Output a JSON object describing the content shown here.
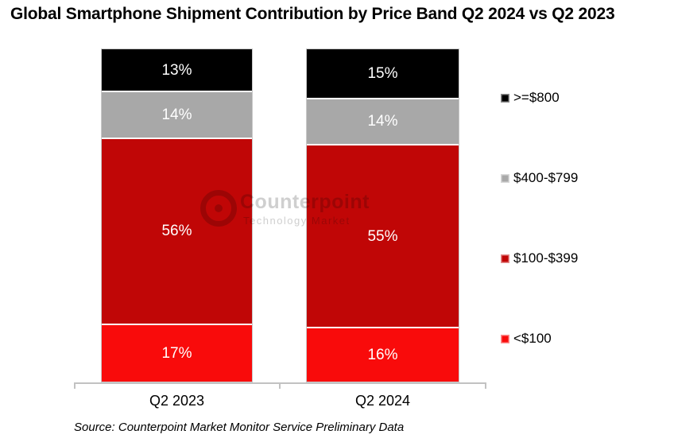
{
  "title": "Global Smartphone Shipment Contribution by Price Band Q2 2024 vs Q2 2023",
  "source": "Source: Counterpoint Market Monitor Service Preliminary Data",
  "watermark": {
    "brand": "Counterpoint",
    "tagline": "Technology Market"
  },
  "chart_data": {
    "type": "bar",
    "stacked": true,
    "title": "Global Smartphone Shipment Contribution by Price Band Q2 2024 vs Q2 2023",
    "categories": [
      "Q2 2023",
      "Q2 2024"
    ],
    "series": [
      {
        "name": ">=$800",
        "color": "#000000",
        "values": [
          13,
          15
        ]
      },
      {
        "name": "$400-$799",
        "color": "#A8A8A8",
        "values": [
          14,
          14
        ]
      },
      {
        "name": "$100-$399",
        "color": "#C00606",
        "values": [
          56,
          55
        ]
      },
      {
        "name": "<$100",
        "color": "#F90B0B",
        "values": [
          17,
          16
        ]
      }
    ],
    "value_suffix": "%",
    "ylim": [
      0,
      100
    ],
    "grid": false,
    "legend_position": "right",
    "data_label_color": "#FFFFFF",
    "bar_order_top_to_bottom": true
  }
}
